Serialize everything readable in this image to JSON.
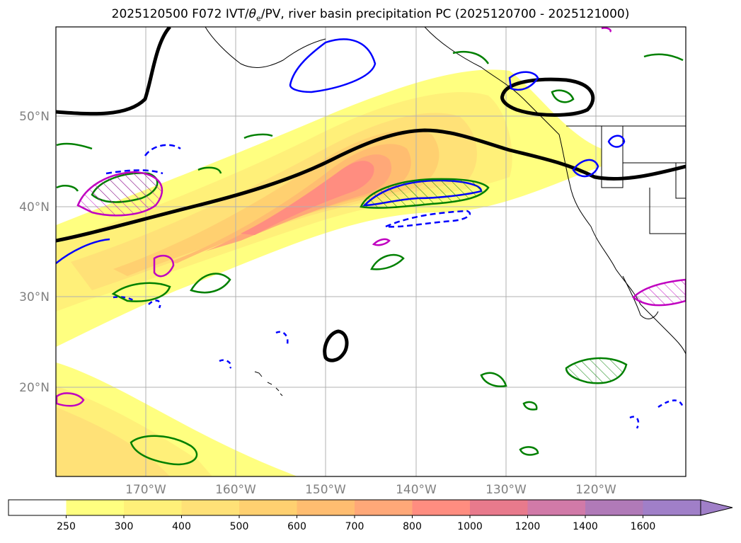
{
  "title_parts": {
    "prefix": "2025120500 F072 IVT/",
    "theta": "θ",
    "theta_sub": "e",
    "suffix": "/PV, river basin precipitation PC (2025120700 - 2025121000)"
  },
  "lat_labels": [
    "50°N",
    "40°N",
    "30°N",
    "20°N"
  ],
  "lon_labels": [
    "170°W",
    "160°W",
    "150°W",
    "140°W",
    "130°W",
    "120°W"
  ],
  "colorbar": {
    "levels": [
      "250",
      "300",
      "400",
      "500",
      "600",
      "700",
      "800",
      "1000",
      "1200",
      "1400",
      "1600"
    ],
    "colors": [
      "#ffffff",
      "#ffff80",
      "#fff079",
      "#ffe177",
      "#ffd070",
      "#ffbd70",
      "#ffa878",
      "#ff8d80",
      "#e87a8c",
      "#d17aa8",
      "#b07ab8",
      "#a07fc8"
    ],
    "extend": "max"
  },
  "colors": {
    "ivt_levels": [
      "#ffff80",
      "#fff079",
      "#ffe177",
      "#ffd070",
      "#ffbd70",
      "#ffa878",
      "#ff8d80"
    ],
    "theta_contour": "#000000",
    "pv_positive": "#0000ff",
    "pv_negative": "#0000ff",
    "precip_green": "#008000",
    "precip_magenta": "#c000c0",
    "coastline": "#000000",
    "grid": "#b0b0b0"
  }
}
